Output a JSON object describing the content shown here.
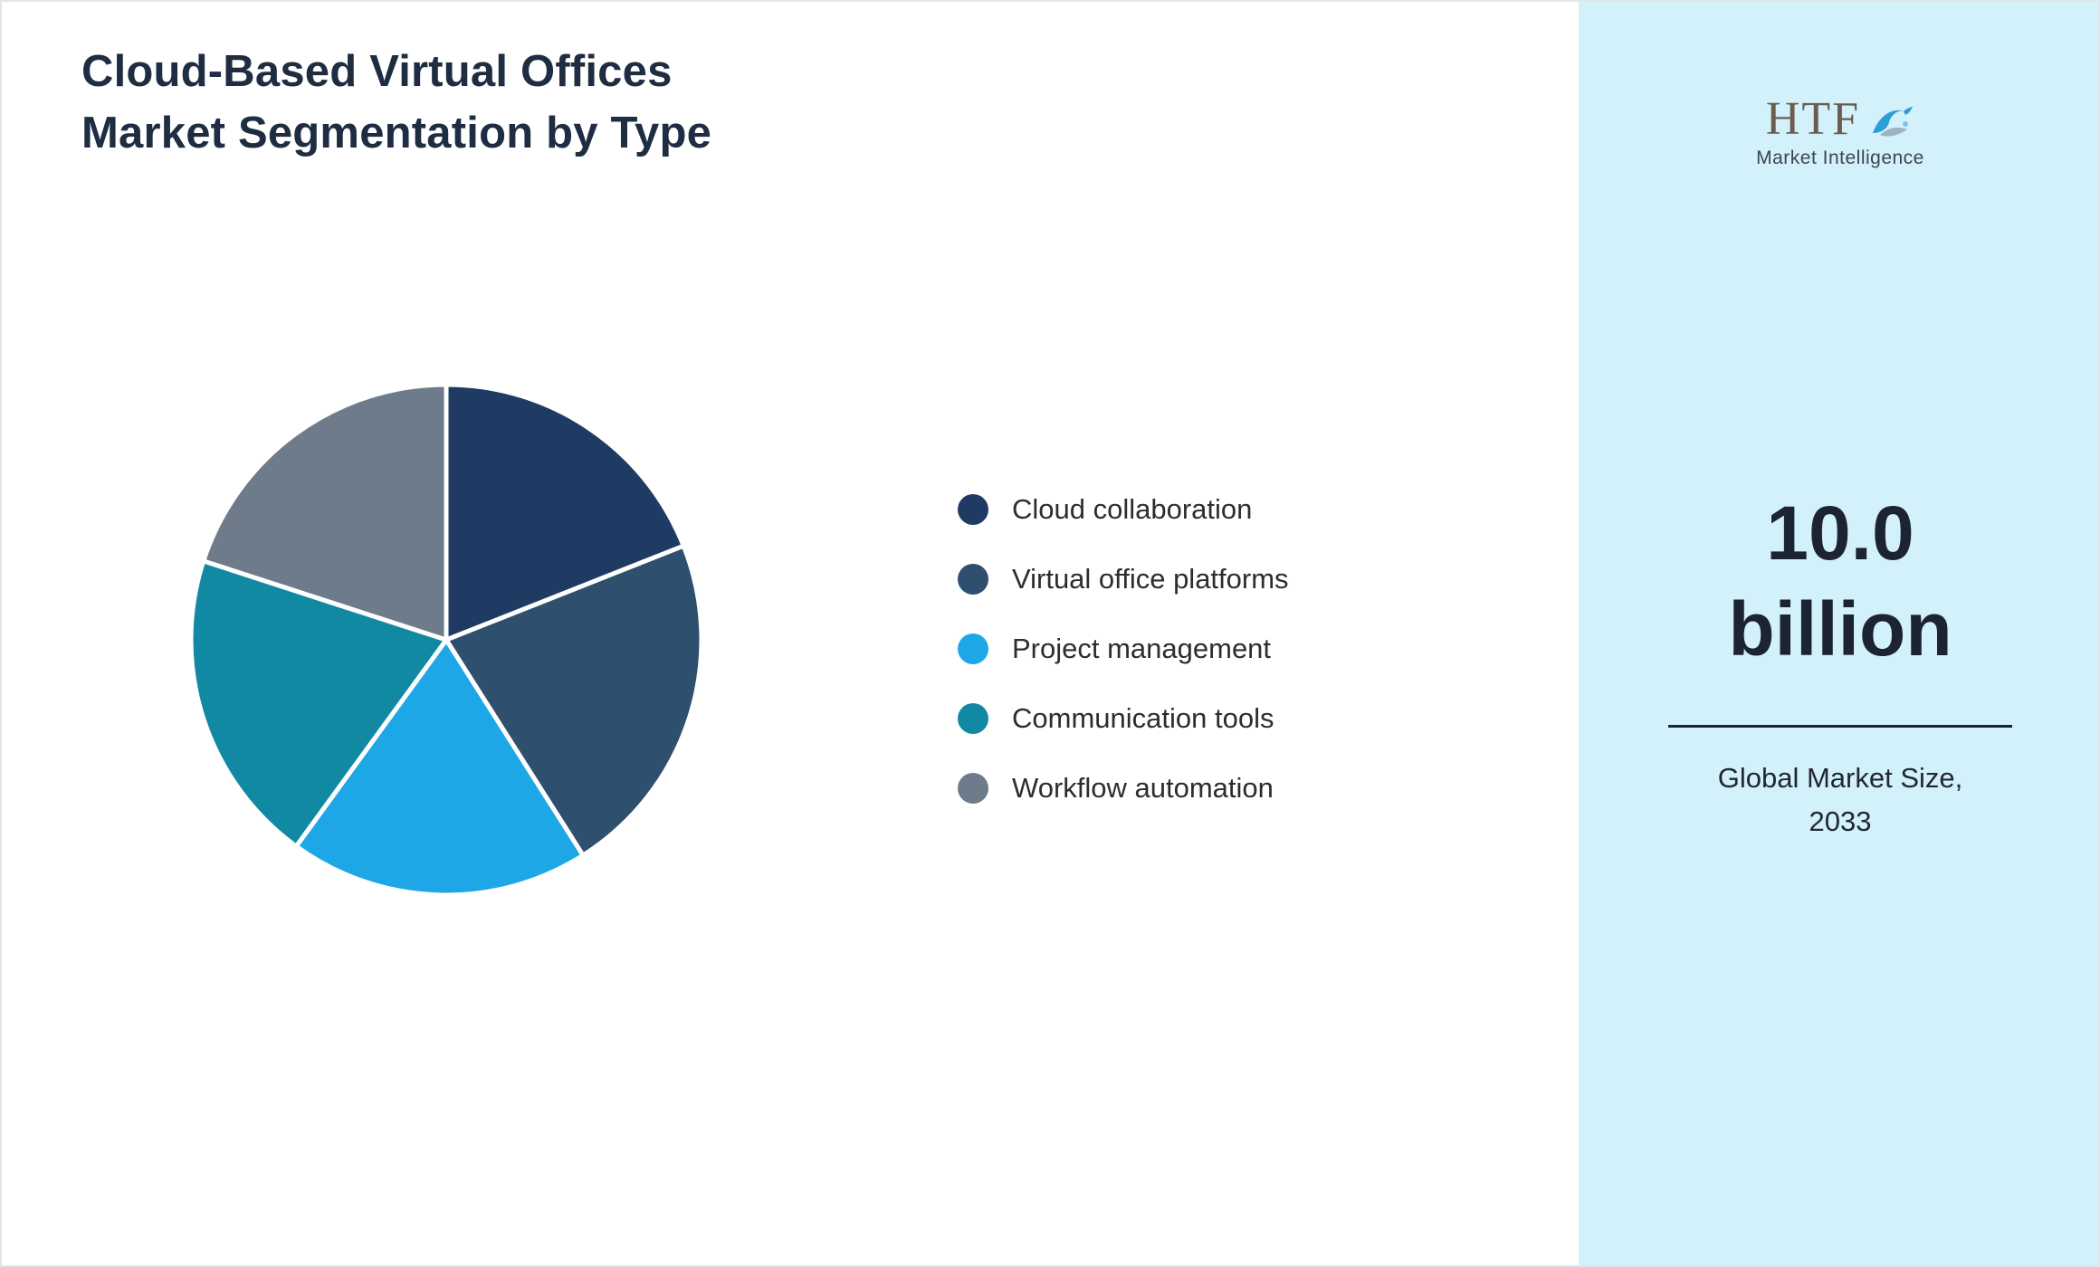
{
  "header": {
    "title_line1": "Cloud-Based Virtual Offices",
    "title_line2": "Market Segmentation by Type"
  },
  "chart_data": {
    "type": "pie",
    "title": "Cloud-Based Virtual Offices Market Segmentation by Type",
    "labels": [
      "Cloud collaboration",
      "Virtual office platforms",
      "Project management",
      "Communication tools",
      "Workflow automation"
    ],
    "values": [
      19,
      22,
      19,
      20,
      20
    ],
    "colors": [
      "#1f3b63",
      "#2f4f6e",
      "#1ea7e6",
      "#1189a3",
      "#6e7b8a"
    ],
    "start_angle_deg": -90,
    "direction": "clockwise",
    "legend_position": "right",
    "slice_border_color": "#ffffff"
  },
  "side_panel": {
    "background_color": "#d2f1fa",
    "logo_text": "HTF",
    "logo_subtext": "Market Intelligence",
    "market_size_value": "10.0",
    "market_size_unit": "billion",
    "caption_line1": "Global Market Size,",
    "caption_line2": "2033"
  }
}
